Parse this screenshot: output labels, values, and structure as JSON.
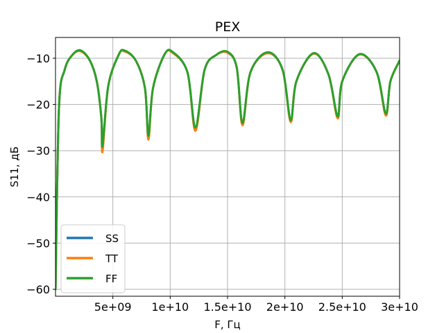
{
  "chart_data": {
    "type": "line",
    "title": "PEX",
    "xlabel": "F, Гц",
    "ylabel": "S11, дБ",
    "xlim": [
      0,
      30000000000
    ],
    "ylim": [
      -61.5,
      -5.5
    ],
    "x_ticks": [
      5000000000,
      10000000000,
      15000000000,
      20000000000,
      25000000000,
      30000000000
    ],
    "x_tick_labels": [
      "5e+09",
      "1e+10",
      "1.5e+10",
      "2e+10",
      "2.5e+10",
      "3e+10"
    ],
    "y_ticks": [
      -60,
      -50,
      -40,
      -30,
      -20,
      -10
    ],
    "y_tick_labels": [
      "−60",
      "−50",
      "−40",
      "−30",
      "−20",
      "−10"
    ],
    "grid": true,
    "legend_position": "lower-left",
    "series": [
      {
        "name": "SS",
        "color": "#1f77b4",
        "x": [
          0,
          300000000,
          800000000,
          1500000000,
          2200000000,
          3000000000,
          3600000000,
          4000000000,
          4100000000,
          4600000000,
          5500000000,
          6000000000,
          7000000000,
          7800000000,
          8100000000,
          8500000000,
          9500000000,
          10200000000,
          11500000000,
          12200000000,
          13000000000,
          14000000000,
          15000000000,
          15800000000,
          16300000000,
          17000000000,
          18500000000,
          19800000000,
          20500000000,
          21000000000,
          22500000000,
          23800000000,
          24600000000,
          25000000000,
          26500000000,
          28000000000,
          28800000000,
          29200000000,
          30000000000
        ],
        "values": [
          -60,
          -21,
          -12.5,
          -9.2,
          -8.5,
          -10.5,
          -15,
          -23,
          -29.5,
          -16,
          -9.3,
          -8.5,
          -10.5,
          -16.5,
          -27,
          -16.5,
          -9.2,
          -8.8,
          -13,
          -25,
          -12.5,
          -9.3,
          -8.8,
          -12,
          -24,
          -13,
          -8.9,
          -12.5,
          -23.5,
          -15,
          -9,
          -13.5,
          -22.5,
          -15,
          -9.2,
          -13,
          -22,
          -15,
          -10.5
        ]
      },
      {
        "name": "TT",
        "color": "#ff7f0e",
        "x": [
          0,
          300000000,
          800000000,
          1500000000,
          2200000000,
          3000000000,
          3600000000,
          4000000000,
          4100000000,
          4600000000,
          5500000000,
          6000000000,
          7000000000,
          7800000000,
          8100000000,
          8500000000,
          9500000000,
          10200000000,
          11500000000,
          12200000000,
          13000000000,
          14000000000,
          15000000000,
          15800000000,
          16300000000,
          17000000000,
          18500000000,
          19800000000,
          20500000000,
          21000000000,
          22500000000,
          23800000000,
          24600000000,
          25000000000,
          26500000000,
          28000000000,
          28800000000,
          29200000000,
          30000000000
        ],
        "values": [
          -60,
          -21,
          -12.5,
          -9.2,
          -8.5,
          -10.5,
          -15,
          -23,
          -30.2,
          -16,
          -9.3,
          -8.5,
          -10.5,
          -16.5,
          -27.6,
          -16.5,
          -9.2,
          -8.8,
          -13,
          -25.7,
          -12.5,
          -9.3,
          -8.8,
          -12,
          -24.5,
          -13,
          -8.9,
          -12.5,
          -23.8,
          -15,
          -9,
          -13.5,
          -23,
          -15,
          -9.2,
          -13,
          -22.4,
          -15,
          -10.5
        ]
      },
      {
        "name": "FF",
        "color": "#2ca02c",
        "x": [
          0,
          300000000,
          800000000,
          1500000000,
          2200000000,
          3000000000,
          3600000000,
          4000000000,
          4100000000,
          4600000000,
          5500000000,
          6000000000,
          7000000000,
          7800000000,
          8100000000,
          8500000000,
          9500000000,
          10200000000,
          11500000000,
          12200000000,
          13000000000,
          14000000000,
          15000000000,
          15800000000,
          16300000000,
          17000000000,
          18500000000,
          19800000000,
          20500000000,
          21000000000,
          22500000000,
          23800000000,
          24600000000,
          25000000000,
          26500000000,
          28000000000,
          28800000000,
          29200000000,
          30000000000
        ],
        "values": [
          -60,
          -21,
          -12.5,
          -9.2,
          -8.3,
          -10.5,
          -15,
          -23,
          -29,
          -16,
          -9.3,
          -8.3,
          -10.5,
          -16.5,
          -26.8,
          -16.5,
          -9.2,
          -8.6,
          -13,
          -25,
          -12.5,
          -9.3,
          -8.6,
          -12,
          -24,
          -13,
          -8.7,
          -12.5,
          -23.4,
          -15,
          -8.9,
          -13.5,
          -22.6,
          -15,
          -9.1,
          -13,
          -22,
          -15,
          -10.5
        ]
      }
    ]
  }
}
